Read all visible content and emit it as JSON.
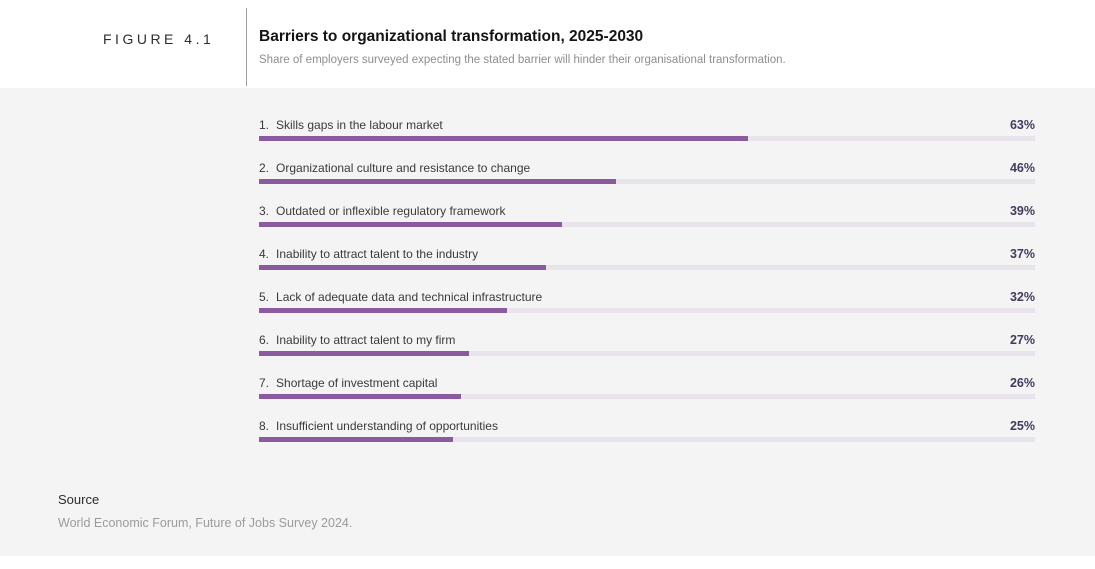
{
  "figure": {
    "label": "FIGURE 4.1"
  },
  "header": {
    "title": "Barriers to organizational transformation, 2025-2030",
    "subtitle": "Share of employers surveyed expecting the stated barrier will hinder their organisational transformation."
  },
  "source": {
    "label": "Source",
    "text": "World Economic Forum, Future of Jobs Survey 2024."
  },
  "colors": {
    "accent_bar": "#8a5b9e",
    "bar_track": "#e9e4ec",
    "value_text": "#443a5e",
    "panel_bg": "#f5f4f5"
  },
  "chart_data": {
    "type": "bar",
    "orientation": "horizontal",
    "title": "Barriers to organizational transformation, 2025-2030",
    "subtitle": "Share of employers surveyed expecting the stated barrier will hinder their organisational transformation.",
    "unit": "%",
    "xlim": [
      0,
      100
    ],
    "grid": false,
    "legend": false,
    "categories": [
      "Skills gaps in the labour market",
      "Organizational culture and resistance to change",
      "Outdated or inflexible regulatory framework",
      "Inability to attract talent to the industry",
      "Lack of adequate data and technical infrastructure",
      "Inability to attract talent to my firm",
      "Shortage of investment capital",
      "Insufficient understanding of opportunities"
    ],
    "rank_labels": [
      "1.",
      "2.",
      "3.",
      "4.",
      "5.",
      "6.",
      "7.",
      "8."
    ],
    "values": [
      63,
      46,
      39,
      37,
      32,
      27,
      26,
      25
    ],
    "value_labels": [
      "63%",
      "46%",
      "39%",
      "37%",
      "32%",
      "27%",
      "26%",
      "25%"
    ],
    "source": "World Economic Forum, Future of Jobs Survey 2024."
  }
}
